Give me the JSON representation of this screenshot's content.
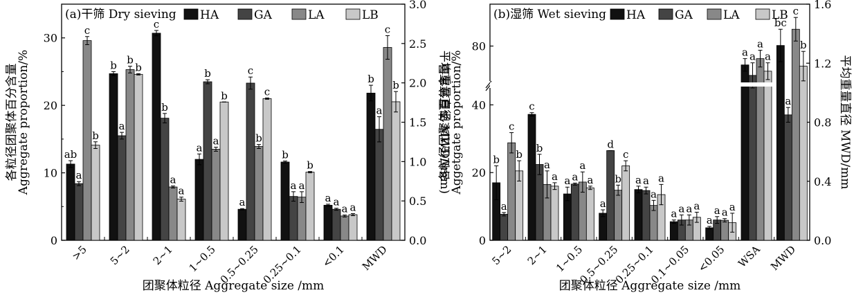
{
  "colors": {
    "HA": "#111111",
    "GA": "#444444",
    "LA": "#888888",
    "LB": "#c8c8c8"
  },
  "chart_data": [
    {
      "type": "bar",
      "panel_title": "(a)干筛 Dry sieving",
      "xlabel": "团聚体粒径 Aggregate size /mm",
      "ylabel_cn": "各粒径团聚体百分含量",
      "ylabel_en": "Aggregate proportion/%",
      "y2label": "平均重量直径 MWD/(mm)",
      "ylim": [
        0,
        35
      ],
      "yticks": [
        0,
        10,
        20,
        30
      ],
      "y2lim": [
        0,
        3.0
      ],
      "y2ticks": [
        0.0,
        0.5,
        1.0,
        1.5,
        2.0,
        2.5,
        3.0
      ],
      "legend": [
        "HA",
        "GA",
        "LA",
        "LB"
      ],
      "categories": [
        ">5",
        "5~2",
        "2~1",
        "1~0.5",
        "0.5~0.25",
        "0.25~0.1",
        "<0.1",
        "MWD"
      ],
      "right_axis_categories": [
        "MWD"
      ],
      "series": [
        {
          "name": "HA",
          "values": [
            11.3,
            24.7,
            30.7,
            12.0,
            4.6,
            11.6,
            5.2,
            1.87
          ],
          "errors": [
            0.5,
            0.3,
            0.4,
            0.8,
            0.1,
            0.15,
            0.15,
            0.1
          ],
          "labels": [
            "ab",
            "b",
            "c",
            "a",
            "a",
            "b",
            "a",
            "b"
          ]
        },
        {
          "name": "GA",
          "values": [
            8.4,
            15.5,
            18.1,
            23.5,
            23.3,
            6.5,
            4.6,
            1.41
          ],
          "errors": [
            0.3,
            0.5,
            0.7,
            0.3,
            0.9,
            0.7,
            0.15,
            0.16
          ],
          "labels": [
            "a",
            "a",
            "b",
            "b",
            "c",
            "a",
            "a",
            "a"
          ]
        },
        {
          "name": "LA",
          "values": [
            29.6,
            25.3,
            7.9,
            13.5,
            13.9,
            6.4,
            3.6,
            2.45
          ],
          "errors": [
            0.6,
            0.5,
            0.15,
            0.3,
            0.3,
            0.8,
            0.15,
            0.15
          ],
          "labels": [
            "c",
            "b",
            "a",
            "a",
            "b",
            "a",
            "a",
            "c"
          ]
        },
        {
          "name": "LB",
          "values": [
            14.1,
            24.6,
            6.1,
            20.5,
            21.0,
            10.1,
            3.8,
            1.76
          ],
          "errors": [
            0.5,
            0.1,
            0.3,
            0.0,
            0.1,
            0.1,
            0.15,
            0.13
          ],
          "labels": [
            "b",
            "b",
            "a",
            "b",
            "c",
            "b",
            "a",
            "b"
          ]
        }
      ]
    },
    {
      "type": "bar",
      "panel_title": "(b)湿筛 Wet sieving",
      "xlabel": "团聚体粒径 Aggregate size /mm",
      "ylabel_cn": "各粒径团聚体百分含量",
      "ylabel_en": "Aggetgate proportion/%",
      "y2label": "平均重量直径 MWD/mm",
      "ylim": [
        0,
        90
      ],
      "yticks": [
        0,
        20,
        40,
        80
      ],
      "y2lim": [
        0,
        1.6
      ],
      "y2ticks": [
        0.0,
        0.4,
        0.8,
        1.2,
        1.6
      ],
      "axis_break": true,
      "legend": [
        "HA",
        "GA",
        "LA",
        "LB"
      ],
      "categories": [
        "5~2",
        "2~1",
        "1~0.5",
        "0.5~0.25",
        "0.25~0.1",
        "0.1~0.05",
        "<0.05",
        "WSA",
        "MWD"
      ],
      "right_axis_categories": [
        "MWD"
      ],
      "series": [
        {
          "name": "HA",
          "values": [
            17.0,
            37.2,
            13.7,
            8.0,
            15.0,
            5.5,
            3.7,
            75.5,
            1.32
          ],
          "errors": [
            5.0,
            0.5,
            2.0,
            1.0,
            1.0,
            0.5,
            0.4,
            1.5,
            0.11
          ],
          "labels": [
            "b",
            "c",
            "a",
            "a",
            "a",
            "a",
            "a",
            "a",
            "bc"
          ]
        },
        {
          "name": "GA",
          "values": [
            7.7,
            22.4,
            16.6,
            26.5,
            14.7,
            6.0,
            6.0,
            73.0,
            0.85
          ],
          "errors": [
            0.5,
            3.0,
            0.3,
            0.0,
            1.0,
            1.5,
            1.0,
            3.0,
            0.05
          ],
          "labels": [
            "a",
            "b",
            "a",
            "d",
            "a",
            "a",
            "a",
            "a",
            "a"
          ]
        },
        {
          "name": "LA",
          "values": [
            28.8,
            16.5,
            17.2,
            14.8,
            10.3,
            6.0,
            5.9,
            77.0,
            1.43
          ],
          "errors": [
            3.0,
            4.0,
            3.0,
            1.5,
            1.5,
            1.5,
            0.5,
            2.0,
            0.08
          ],
          "labels": [
            "c",
            "a",
            "a",
            "b",
            "a",
            "a",
            "a",
            "a",
            "c"
          ]
        },
        {
          "name": "LB",
          "values": [
            20.5,
            16.0,
            15.5,
            22.0,
            13.5,
            6.8,
            5.2,
            74.0,
            1.18
          ],
          "errors": [
            3.0,
            1.0,
            0.5,
            1.5,
            3.0,
            1.5,
            2.8,
            2.0,
            0.1
          ],
          "labels": [
            "b",
            "a",
            "a",
            "c",
            "a",
            "a",
            "a",
            "a",
            "b"
          ]
        }
      ]
    }
  ]
}
